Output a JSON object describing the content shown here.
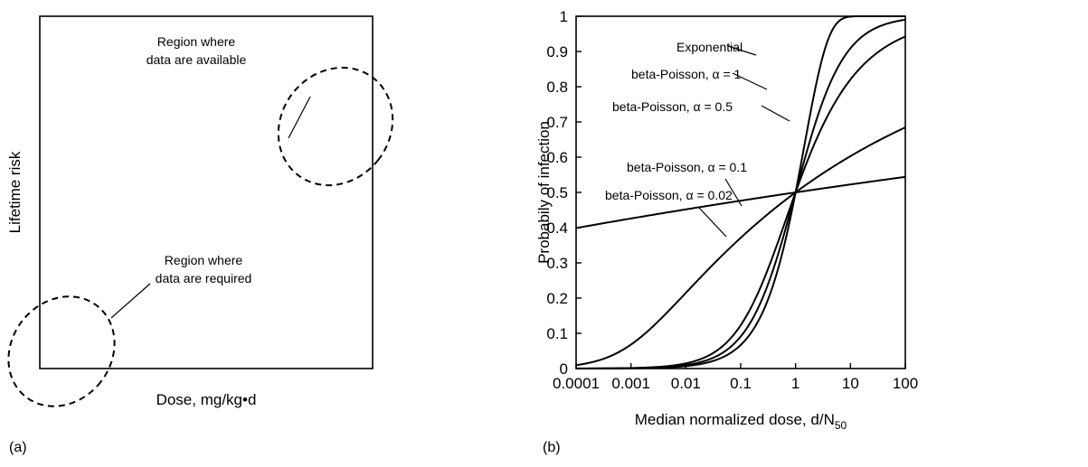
{
  "chart_data": [
    {
      "type": "diagram",
      "panel_label": "(a)",
      "xlabel": "Dose, mg/kg•d",
      "ylabel": "Lifetime risk",
      "annotations": [
        {
          "id": "available",
          "lines": [
            "Region where",
            "data are available"
          ]
        },
        {
          "id": "required",
          "lines": [
            "Region where",
            "data are required"
          ]
        }
      ]
    },
    {
      "type": "line",
      "panel_label": "(b)",
      "xlabel_main": "Median normalized dose, d/N",
      "xlabel_sub": "50",
      "ylabel": "Probabily of infection",
      "xscale": "log",
      "xlim": [
        0.0001,
        100
      ],
      "ylim": [
        0,
        1
      ],
      "x_ticks": [
        "0.0001",
        "0.001",
        "0.01",
        "0.1",
        "1",
        "10",
        "100"
      ],
      "y_ticks": [
        "0",
        "0.1",
        "0.2",
        "0.3",
        "0.4",
        "0.5",
        "0.6",
        "0.7",
        "0.8",
        "0.9",
        "1"
      ],
      "series": [
        {
          "name": "Exponential",
          "model": "exponential"
        },
        {
          "name": "beta-Poisson, α = 1",
          "model": "beta-poisson",
          "alpha": 1
        },
        {
          "name": "beta-Poisson, α = 0.5",
          "model": "beta-poisson",
          "alpha": 0.5
        },
        {
          "name": "beta-Poisson, α = 0.1",
          "model": "beta-poisson",
          "alpha": 0.1
        },
        {
          "name": "beta-Poisson, α = 0.02",
          "model": "beta-poisson",
          "alpha": 0.02
        }
      ]
    }
  ]
}
